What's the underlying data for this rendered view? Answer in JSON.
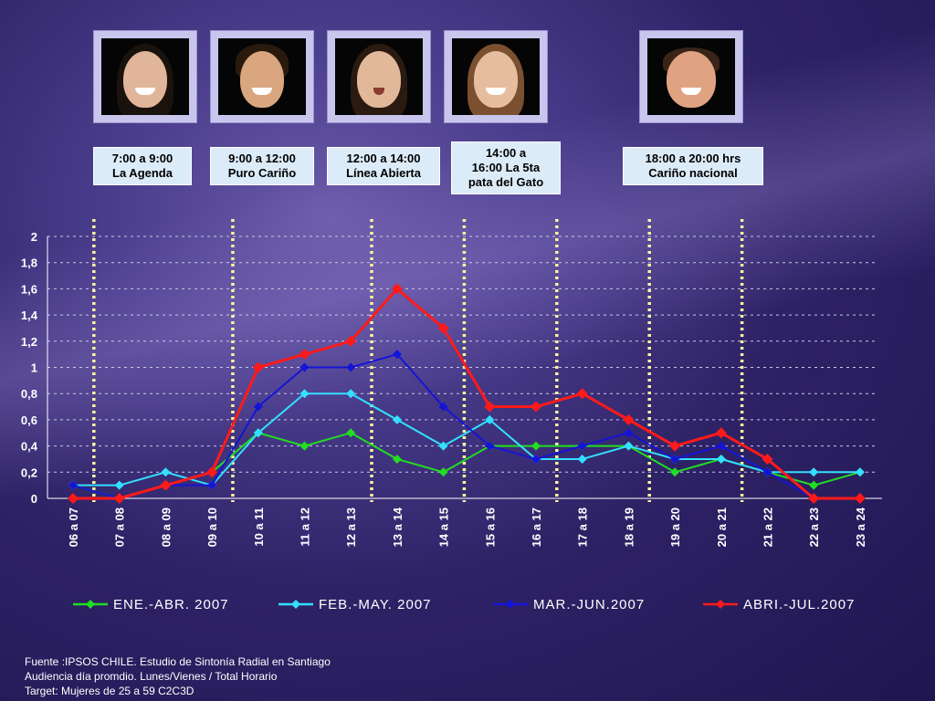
{
  "hosts": [
    {
      "name": "host-photo-la-agenda",
      "time": "7:00 a 9:00\nLa Agenda"
    },
    {
      "name": "host-photo-puro-carino",
      "time": "9:00 a 12:00\nPuro Cariño"
    },
    {
      "name": "host-photo-linea-abierta",
      "time": "12:00 a 14:00\nLínea Abierta"
    },
    {
      "name": "host-photo-5ta-pata",
      "time": "14:00 a\n16:00 La 5ta\npata del Gato"
    },
    {
      "name": "host-photo-carino-nacional",
      "time": "18:00 a 20:00 hrs\nCariño nacional"
    }
  ],
  "chart_data": {
    "type": "line",
    "title": "",
    "xlabel": "",
    "ylabel": "",
    "categories": [
      "06 a 07",
      "07 a 08",
      "08 a 09",
      "09 a 10",
      "10 a 11",
      "11 a 12",
      "12 a 13",
      "13 a 14",
      "14 a 15",
      "15 a 16",
      "16 a 17",
      "17 a 18",
      "18 a 19",
      "19 a 20",
      "20 a 21",
      "21 a 22",
      "22 a 23",
      "23 a 24"
    ],
    "ylim": [
      0,
      2
    ],
    "yticks": [
      "0",
      "0,2",
      "0,4",
      "0,6",
      "0,8",
      "1",
      "1,2",
      "1,4",
      "1,6",
      "1,8",
      "2"
    ],
    "grid": true,
    "legend_position": "bottom",
    "series": [
      {
        "name": "ENE.-ABR. 2007",
        "color": "#22dd22",
        "values": [
          0.1,
          0.0,
          0.1,
          0.2,
          0.5,
          0.4,
          0.5,
          0.3,
          0.2,
          0.4,
          0.4,
          0.4,
          0.4,
          0.2,
          0.3,
          0.2,
          0.1,
          0.2
        ]
      },
      {
        "name": "FEB.-MAY. 2007",
        "color": "#33e0ff",
        "values": [
          0.1,
          0.1,
          0.2,
          0.1,
          0.5,
          0.8,
          0.8,
          0.6,
          0.4,
          0.6,
          0.3,
          0.3,
          0.4,
          0.3,
          0.3,
          0.2,
          0.2,
          0.2
        ]
      },
      {
        "name": "MAR.-JUN.2007",
        "color": "#1414d6",
        "values": [
          0.1,
          0.0,
          0.1,
          0.1,
          0.7,
          1.0,
          1.0,
          1.1,
          0.7,
          0.4,
          0.3,
          0.4,
          0.5,
          0.3,
          0.4,
          0.2,
          0.0,
          0.0
        ]
      },
      {
        "name": "ABRI.-JUL.2007",
        "color": "#ff1a1a",
        "values": [
          0.0,
          0.0,
          0.1,
          0.2,
          1.0,
          1.1,
          1.2,
          1.6,
          1.3,
          0.7,
          0.7,
          0.8,
          0.6,
          0.4,
          0.5,
          0.3,
          0.0,
          0.0
        ]
      }
    ],
    "program_dividers_after": [
      "06 a 07",
      "09 a 10",
      "12 a 13",
      "14 a 15",
      "16 a 17",
      "18 a 19",
      "20 a 21"
    ]
  },
  "footer": {
    "line1": "Fuente :IPSOS CHILE. Estudio de Sintonía Radial en Santiago",
    "line2": "Audiencia día promdio. Lunes/Vienes / Total Horario",
    "line3": "Target: Mujeres de 25 a 59 C2C3D"
  }
}
